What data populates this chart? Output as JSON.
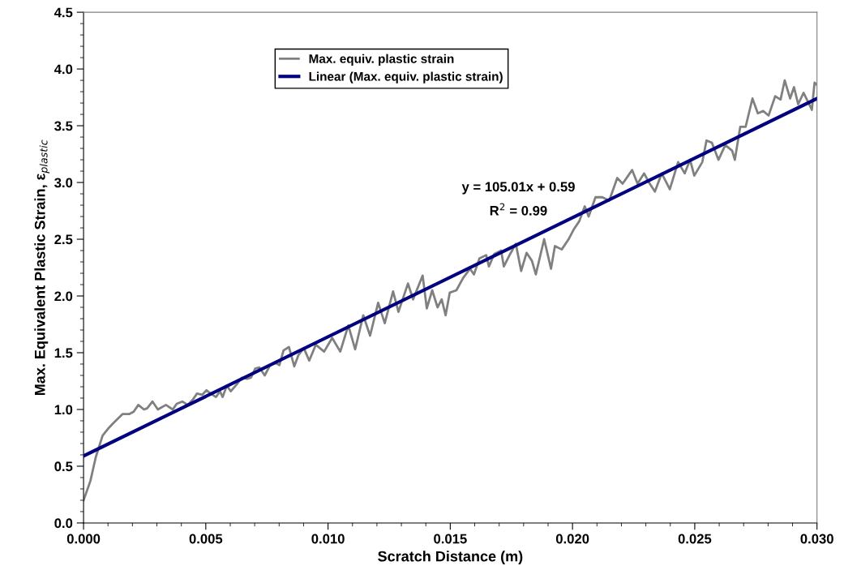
{
  "chart_data": {
    "type": "line",
    "xlabel": "Scratch Distance (m)",
    "ylabel": "Max. Equivalent Plastic Strain, ε$_{plastic}$",
    "xlim": [
      0,
      0.03
    ],
    "ylim": [
      0,
      4.5
    ],
    "xticks": [
      {
        "value": 0,
        "label": "0.000"
      },
      {
        "value": 0.005,
        "label": "0.005"
      },
      {
        "value": 0.01,
        "label": "0.010"
      },
      {
        "value": 0.015,
        "label": "0.015"
      },
      {
        "value": 0.02,
        "label": "0.020"
      },
      {
        "value": 0.025,
        "label": "0.025"
      },
      {
        "value": 0.03,
        "label": "0.030"
      }
    ],
    "yticks": [
      {
        "value": 0,
        "label": "0.0"
      },
      {
        "value": 0.5,
        "label": "0.5"
      },
      {
        "value": 1,
        "label": "1.0"
      },
      {
        "value": 1.5,
        "label": "1.5"
      },
      {
        "value": 2,
        "label": "2.0"
      },
      {
        "value": 2.5,
        "label": "2.5"
      },
      {
        "value": 3,
        "label": "3.0"
      },
      {
        "value": 3.5,
        "label": "3.5"
      },
      {
        "value": 4,
        "label": "4.0"
      },
      {
        "value": 4.5,
        "label": "4.5"
      }
    ],
    "grid": false,
    "legend": "top",
    "marker": "none",
    "line_style": "solid",
    "annotations": [
      "y = 105.01x + 0.59",
      "R$^{2}$ = 0.99"
    ],
    "series": [
      {
        "name": "Max. equiv. plastic strain",
        "color": "#808080",
        "x": [
          0,
          0.00028,
          0.0005,
          0.00078,
          0.001,
          0.00122,
          0.0016,
          0.00188,
          0.00205,
          0.00224,
          0.00247,
          0.0026,
          0.00282,
          0.00304,
          0.0032,
          0.00337,
          0.00365,
          0.00381,
          0.00404,
          0.00426,
          0.00448,
          0.00464,
          0.00486,
          0.00503,
          0.00519,
          0.00542,
          0.00558,
          0.00569,
          0.00586,
          0.00602,
          0.0063,
          0.00647,
          0.00669,
          0.00685,
          0.00702,
          0.00719,
          0.00741,
          0.00763,
          0.00785,
          0.00801,
          0.00818,
          0.0084,
          0.00862,
          0.00879,
          0.00901,
          0.00923,
          0.0095,
          0.00984,
          0.01017,
          0.0105,
          0.01083,
          0.01111,
          0.01144,
          0.01172,
          0.01205,
          0.01232,
          0.01266,
          0.01288,
          0.01327,
          0.01348,
          0.01387,
          0.01404,
          0.01426,
          0.01448,
          0.01465,
          0.01481,
          0.01498,
          0.01525,
          0.01553,
          0.01581,
          0.01597,
          0.01619,
          0.01647,
          0.01658,
          0.0168,
          0.01708,
          0.01719,
          0.0174,
          0.01768,
          0.0179,
          0.01812,
          0.01834,
          0.0185,
          0.01884,
          0.01912,
          0.01928,
          0.01956,
          0.01984,
          0.02006,
          0.02028,
          0.0205,
          0.02066,
          0.02094,
          0.02122,
          0.0215,
          0.02183,
          0.02205,
          0.02244,
          0.02266,
          0.02293,
          0.0231,
          0.02337,
          0.02365,
          0.02398,
          0.02432,
          0.02459,
          0.02481,
          0.02498,
          0.02531,
          0.02548,
          0.0257,
          0.02597,
          0.02625,
          0.02653,
          0.02664,
          0.02686,
          0.02708,
          0.02736,
          0.02758,
          0.0278,
          0.02802,
          0.02829,
          0.02851,
          0.02868,
          0.0289,
          0.02906,
          0.02923,
          0.02945,
          0.02979,
          0.0299,
          0.03
        ],
        "values": [
          0.2,
          0.37,
          0.58,
          0.77,
          0.83,
          0.88,
          0.96,
          0.96,
          0.98,
          1.04,
          1.0,
          1.01,
          1.07,
          1.0,
          1.02,
          1.04,
          1.0,
          1.05,
          1.07,
          1.04,
          1.09,
          1.14,
          1.13,
          1.17,
          1.14,
          1.11,
          1.16,
          1.11,
          1.21,
          1.16,
          1.23,
          1.28,
          1.27,
          1.28,
          1.36,
          1.37,
          1.3,
          1.39,
          1.41,
          1.39,
          1.52,
          1.55,
          1.38,
          1.48,
          1.54,
          1.43,
          1.57,
          1.51,
          1.63,
          1.51,
          1.74,
          1.53,
          1.83,
          1.65,
          1.94,
          1.76,
          2.04,
          1.86,
          2.11,
          1.97,
          2.18,
          1.89,
          2.05,
          1.9,
          1.97,
          1.83,
          2.03,
          2.05,
          2.16,
          2.24,
          2.19,
          2.33,
          2.36,
          2.26,
          2.37,
          2.4,
          2.26,
          2.35,
          2.46,
          2.22,
          2.38,
          2.31,
          2.19,
          2.5,
          2.24,
          2.44,
          2.41,
          2.5,
          2.59,
          2.66,
          2.79,
          2.7,
          2.87,
          2.87,
          2.84,
          3.04,
          2.99,
          3.11,
          2.99,
          3.08,
          3.01,
          2.92,
          3.08,
          2.94,
          3.18,
          3.08,
          3.2,
          3.06,
          3.18,
          3.37,
          3.35,
          3.2,
          3.33,
          3.28,
          3.2,
          3.49,
          3.49,
          3.74,
          3.61,
          3.63,
          3.59,
          3.76,
          3.73,
          3.9,
          3.74,
          3.84,
          3.69,
          3.79,
          3.64,
          3.88,
          3.86
        ]
      },
      {
        "name": "Linear (Max. equiv. plastic strain)",
        "color": "#000080",
        "x": [
          0,
          0.03
        ],
        "values": [
          0.59,
          3.74
        ]
      }
    ]
  }
}
